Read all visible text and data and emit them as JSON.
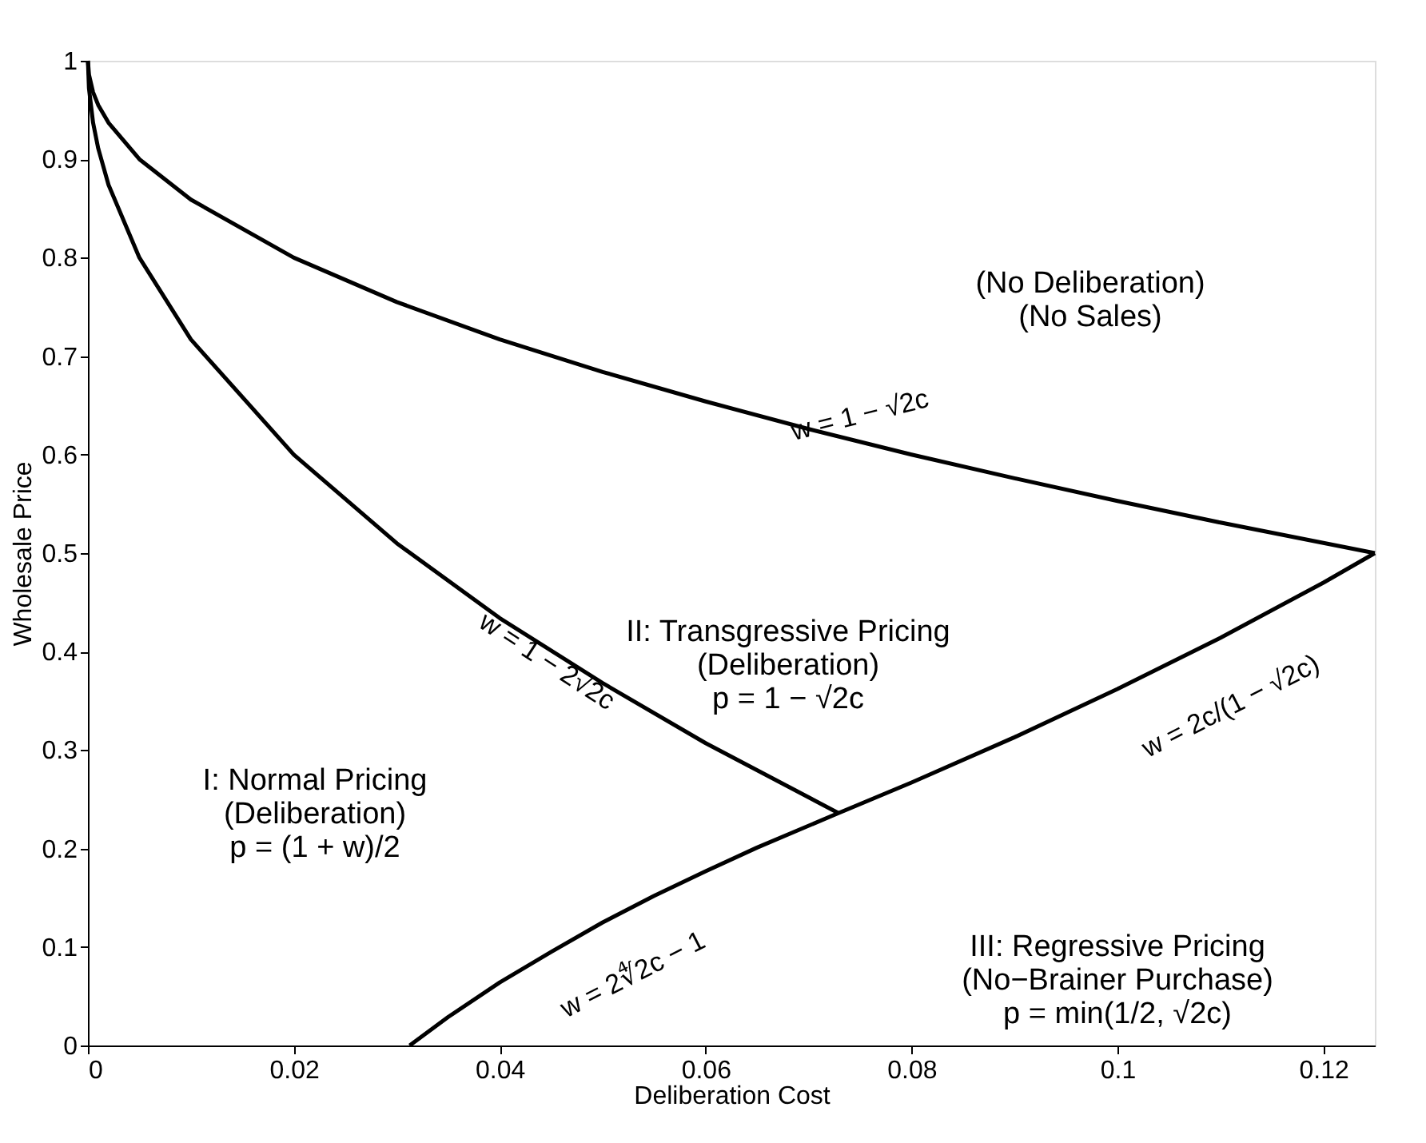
{
  "chart_data": {
    "type": "line",
    "xlabel": "Deliberation Cost",
    "ylabel": "Wholesale Price",
    "xlim": [
      0,
      0.125
    ],
    "xticks": [
      0,
      0.02,
      0.04,
      0.06,
      0.08,
      0.1,
      0.12
    ],
    "ylim": [
      0,
      1
    ],
    "yticks": [
      0,
      0.1,
      0.2,
      0.3,
      0.4,
      0.5,
      0.6,
      0.7,
      0.8,
      0.9,
      1
    ],
    "grid": false,
    "legend": false,
    "marker": "none",
    "line_style": "solid",
    "series": [
      {
        "color": "#000000",
        "x": [
          0,
          0.0001,
          0.0005,
          0.001,
          0.002,
          0.005,
          0.01,
          0.02,
          0.03,
          0.04,
          0.05,
          0.06,
          0.07,
          0.08,
          0.09,
          0.1,
          0.11,
          0.125
        ],
        "values": [
          1,
          0.986,
          0.968,
          0.955,
          0.937,
          0.9,
          0.859,
          0.8,
          0.755,
          0.717,
          0.684,
          0.654,
          0.626,
          0.6,
          0.576,
          0.553,
          0.531,
          0.5
        ]
      },
      {
        "color": "#000000",
        "x": [
          0,
          0.0001,
          0.0005,
          0.001,
          0.002,
          0.005,
          0.01,
          0.02,
          0.03,
          0.04,
          0.05,
          0.06,
          0.07,
          0.0729
        ],
        "values": [
          1,
          0.972,
          0.937,
          0.911,
          0.874,
          0.8,
          0.717,
          0.6,
          0.51,
          0.434,
          0.368,
          0.307,
          0.252,
          0.236
        ]
      },
      {
        "color": "#000000",
        "x": [
          0.03125,
          0.035,
          0.04,
          0.045,
          0.05,
          0.055,
          0.06,
          0.065,
          0.0729,
          0.08,
          0.09,
          0.1,
          0.11,
          0.12,
          0.125
        ],
        "values": [
          0,
          0.029,
          0.064,
          0.095,
          0.125,
          0.152,
          0.177,
          0.201,
          0.236,
          0.267,
          0.313,
          0.362,
          0.414,
          0.47,
          0.5
        ]
      }
    ],
    "annotations": [
      "(No Deliberation)\n(No Sales)",
      "w = 1 − √2c",
      "II: Transgressive Pricing\n(Deliberation)\np = 1 − √2c",
      "w = 1 − 2√2c",
      "I: Normal Pricing\n(Deliberation)\np = (1 + w)/2",
      "w = 2c/(1 − √2c)",
      "III: Regressive Pricing\n(No−Brainer Purchase)\np = min(1/2, √2c)",
      "w = 2∜2c − 1"
    ]
  }
}
